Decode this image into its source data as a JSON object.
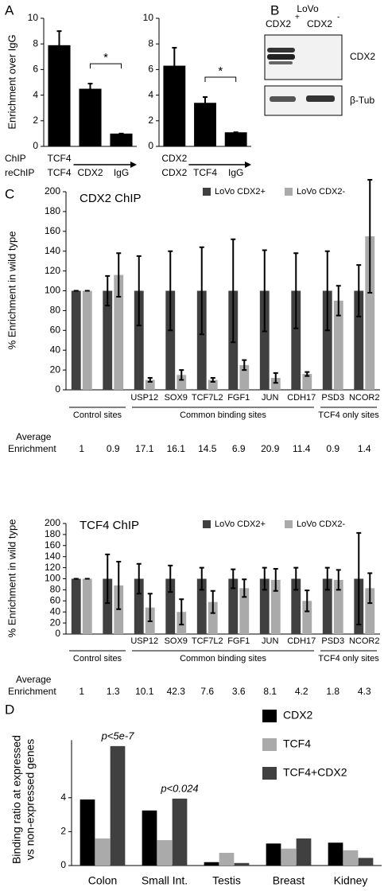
{
  "panel_labels": [
    "A",
    "B",
    "C",
    "D"
  ],
  "blot": {
    "cell_line": "LoVo",
    "lanes": [
      "CDX2",
      "CDX2"
    ],
    "lane_signs": [
      "+",
      "-"
    ],
    "bands": [
      "CDX2",
      "β-Tub"
    ]
  },
  "chart_data": [
    {
      "type": "bar",
      "ylabel": "Enrichment over IgG",
      "row_labels": [
        "ChIP",
        "reChIP"
      ],
      "chip": "TCF4",
      "categories": [
        "TCF4",
        "CDX2",
        "IgG"
      ],
      "values": [
        7.9,
        4.5,
        1.0
      ],
      "errors": [
        1.1,
        0.4,
        0
      ],
      "color": "#000000",
      "ylim": [
        0,
        10
      ],
      "yticks": [
        0,
        2,
        4,
        6,
        8,
        10
      ],
      "annotations": [
        "*"
      ]
    },
    {
      "type": "bar",
      "chip": "CDX2",
      "categories": [
        "CDX2",
        "TCF4",
        "IgG"
      ],
      "values": [
        6.3,
        3.4,
        1.1
      ],
      "errors": [
        1.4,
        0.45,
        0
      ],
      "color": "#000000",
      "ylim": [
        0,
        10
      ],
      "yticks": [
        0,
        2,
        4,
        6,
        8,
        10
      ],
      "annotations": [
        "*"
      ]
    },
    {
      "type": "bar",
      "title": "CDX2 ChIP",
      "ylabel": "% Enrichment in wild type",
      "categories": [
        null,
        null,
        "USP12",
        "SOX9",
        "TCF7L2",
        "FGF1",
        "JUN",
        "CDH17",
        "PSD3",
        "NCOR2"
      ],
      "category_groups": [
        "Control sites",
        "Control sites",
        "Common binding sites",
        "Common binding sites",
        "Common binding sites",
        "Common binding sites",
        "Common binding sites",
        "Common binding sites",
        "TCF4 only sites",
        "TCF4 only sites"
      ],
      "series": [
        {
          "name": "LoVo CDX2+",
          "color": "#404040",
          "values": [
            100,
            100,
            100,
            100,
            100,
            100,
            100,
            100,
            100,
            100
          ],
          "errors": [
            0,
            15,
            35,
            40,
            44,
            52,
            41,
            38,
            40,
            26
          ]
        },
        {
          "name": "LoVo CDX2-",
          "color": "#aaaaaa",
          "values": [
            100,
            116,
            10,
            15,
            10,
            25,
            12,
            16,
            90,
            155
          ],
          "errors": [
            0,
            22,
            2,
            5,
            2,
            5,
            5,
            2,
            15,
            57
          ]
        }
      ],
      "avg_label": [
        "Average",
        "Enrichment"
      ],
      "avg_enrichment": [
        1,
        0.9,
        17.1,
        16.1,
        14.5,
        6.9,
        20.9,
        11.4,
        0.9,
        1.4
      ],
      "ylim": [
        0,
        200
      ],
      "yticks": [
        0,
        20,
        40,
        60,
        80,
        100,
        120,
        140,
        160,
        180,
        200
      ]
    },
    {
      "type": "bar",
      "title": "TCF4 ChIP",
      "ylabel": "% Enrichment in wild type",
      "categories": [
        null,
        null,
        "USP12",
        "SOX9",
        "TCF7L2",
        "FGF1",
        "JUN",
        "CDH17",
        "PSD3",
        "NCOR2"
      ],
      "category_groups": [
        "Control sites",
        "Control sites",
        "Common binding sites",
        "Common binding sites",
        "Common binding sites",
        "Common binding sites",
        "Common binding sites",
        "Common binding sites",
        "TCF4 only sites",
        "TCF4 only sites"
      ],
      "series": [
        {
          "name": "LoVo CDX2+",
          "color": "#404040",
          "values": [
            100,
            100,
            100,
            100,
            100,
            100,
            100,
            100,
            100,
            100
          ],
          "errors": [
            0,
            44,
            27,
            24,
            20,
            17,
            20,
            20,
            20,
            83
          ]
        },
        {
          "name": "LoVo CDX2-",
          "color": "#aaaaaa",
          "values": [
            100,
            88,
            48,
            40,
            58,
            83,
            98,
            60,
            98,
            83
          ],
          "errors": [
            0,
            43,
            25,
            23,
            20,
            16,
            20,
            19,
            18,
            27
          ]
        }
      ],
      "avg_label": [
        "Average",
        "Enrichment"
      ],
      "avg_enrichment": [
        1,
        1.3,
        10.1,
        42.3,
        7.6,
        3.6,
        8.1,
        4.2,
        1.8,
        4.3
      ],
      "ylim": [
        0,
        200
      ],
      "yticks": [
        0,
        20,
        40,
        60,
        80,
        100,
        120,
        140,
        160,
        180,
        200
      ]
    },
    {
      "type": "bar",
      "ylabel": [
        "Binding ratio at expressed",
        "vs non-expressed genes"
      ],
      "categories": [
        "Colon",
        "Small Int.",
        "Testis",
        "Breast",
        "Kidney"
      ],
      "series": [
        {
          "name": "CDX2",
          "color": "#000000",
          "values": [
            3.9,
            3.25,
            0.2,
            1.3,
            1.35
          ]
        },
        {
          "name": "TCF4",
          "color": "#aaaaaa",
          "values": [
            1.6,
            1.5,
            0.75,
            1.0,
            0.9
          ]
        },
        {
          "name": "TCF4+CDX2",
          "color": "#404040",
          "values": [
            7.05,
            3.95,
            0.15,
            1.6,
            0.45
          ]
        }
      ],
      "annotations": [
        "p<5e-7",
        "p<0.024"
      ],
      "ylim": [
        0,
        7.4
      ],
      "yticks": [
        0,
        2,
        4
      ]
    }
  ]
}
